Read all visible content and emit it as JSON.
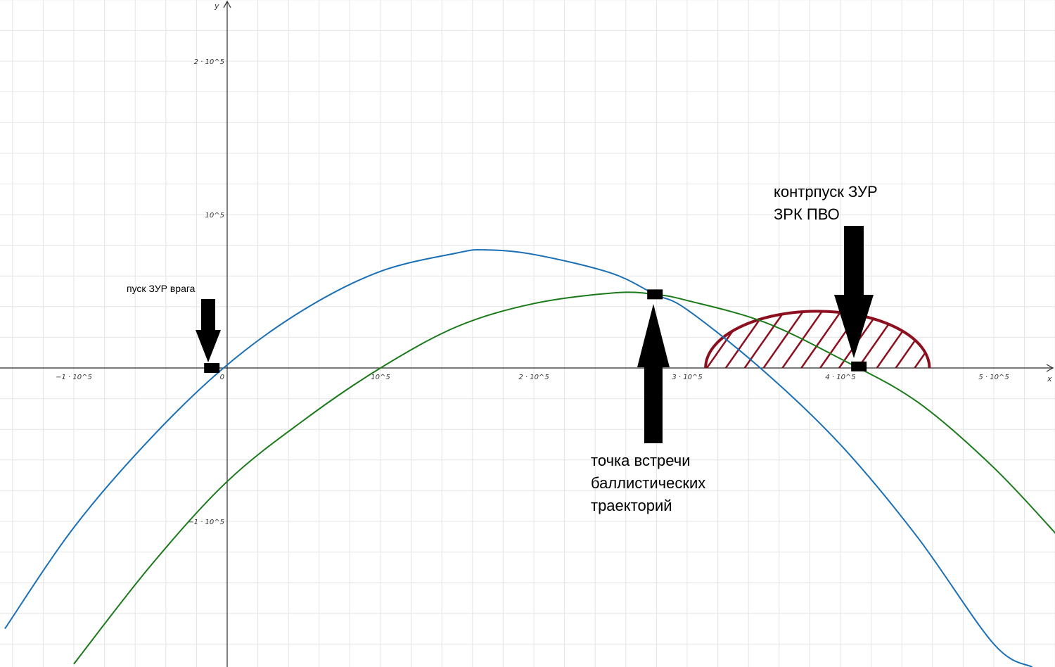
{
  "chart_data": {
    "type": "line",
    "xlabel": "x",
    "ylabel": "y",
    "xlim": [
      -145000,
      545000
    ],
    "ylim": [
      -195000,
      240000
    ],
    "grid": true,
    "x_ticks": [
      {
        "value": -100000,
        "label": "−1 · 10^5"
      },
      {
        "value": 0,
        "label": "0"
      },
      {
        "value": 100000,
        "label": "10^5"
      },
      {
        "value": 200000,
        "label": "2 · 10^5"
      },
      {
        "value": 300000,
        "label": "3 · 10^5"
      },
      {
        "value": 400000,
        "label": "4 · 10^5"
      },
      {
        "value": 500000,
        "label": "5 · 10^5"
      }
    ],
    "y_ticks": [
      {
        "value": 200000,
        "label": "2 · 10^5"
      },
      {
        "value": 100000,
        "label": "10^5"
      },
      {
        "value": -100000,
        "label": "−1 · 10^5"
      }
    ],
    "series": [
      {
        "color": "#1a6fb5",
        "x": [
          -145000,
          -100000,
          -50000,
          0,
          50000,
          100000,
          150000,
          168000,
          200000,
          250000,
          279000,
          300000,
          350000,
          400000,
          450000,
          500000,
          525000
        ],
        "y": [
          -170000,
          -104000,
          -46000,
          2000,
          38000,
          63000,
          75000,
          77000,
          74000,
          62000,
          48000,
          38000,
          -2000,
          -50000,
          -110000,
          -180000,
          -195000
        ]
      },
      {
        "color": "#1a7a1a",
        "x": [
          -100000,
          -50000,
          0,
          50000,
          100000,
          150000,
          200000,
          253000,
          279000,
          300000,
          350000,
          400000,
          450000,
          500000,
          545000
        ],
        "y": [
          -193000,
          -129000,
          -74000,
          -34000,
          0,
          27000,
          42000,
          49000,
          48000,
          44000,
          30000,
          6000,
          -22000,
          -65000,
          -113000
        ]
      }
    ],
    "markers": [
      {
        "name": "enemy-launch",
        "x": -10000,
        "y": 0
      },
      {
        "name": "meeting-point",
        "x": 279000,
        "y": 48000
      },
      {
        "name": "counter-launch",
        "x": 412000,
        "y": 1000
      }
    ],
    "zone": {
      "name": "pvo-zone",
      "cx": 385000,
      "cy": 0,
      "rx": 73000,
      "ry": 37000,
      "color": "#8b0f1e"
    },
    "annotations": {
      "enemy_launch": "пуск ЗУР врага",
      "counter_launch_line1": "контрпуск ЗУР",
      "counter_launch_line2": "ЗРК ПВО",
      "meeting_line1": "точка встречи",
      "meeting_line2": "баллистических",
      "meeting_line3": "траекторий"
    }
  }
}
